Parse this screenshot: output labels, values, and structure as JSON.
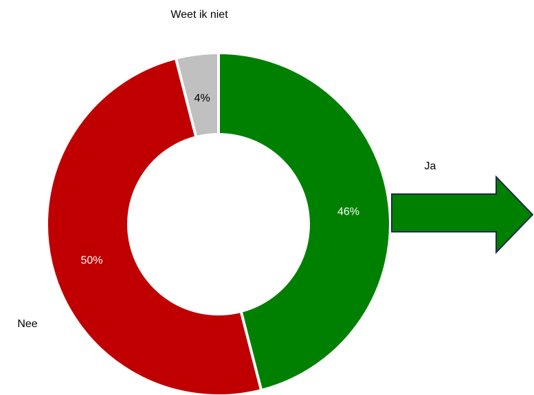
{
  "chart_data": {
    "type": "donut",
    "categories": [
      "Ja",
      "Nee",
      "Weet ik niet"
    ],
    "values": [
      46,
      50,
      4
    ],
    "value_labels": [
      "46%",
      "50%",
      "4%"
    ],
    "colors": [
      "#008000",
      "#c00000",
      "#c0c0c0"
    ]
  }
}
